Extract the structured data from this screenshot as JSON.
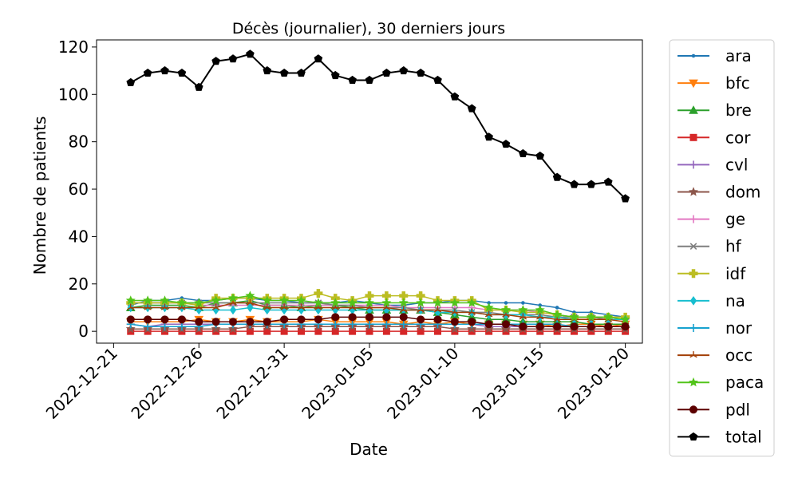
{
  "chart_data": {
    "type": "line",
    "title": "Décès (journalier), 30 derniers jours",
    "xlabel": "Date",
    "ylabel": "Nombre de patients",
    "x_dates": [
      "2022-12-22",
      "2022-12-23",
      "2022-12-24",
      "2022-12-25",
      "2022-12-26",
      "2022-12-27",
      "2022-12-28",
      "2022-12-29",
      "2022-12-30",
      "2022-12-31",
      "2023-01-01",
      "2023-01-02",
      "2023-01-03",
      "2023-01-04",
      "2023-01-05",
      "2023-01-06",
      "2023-01-07",
      "2023-01-08",
      "2023-01-09",
      "2023-01-10",
      "2023-01-11",
      "2023-01-12",
      "2023-01-13",
      "2023-01-14",
      "2023-01-15",
      "2023-01-16",
      "2023-01-17",
      "2023-01-18",
      "2023-01-19",
      "2023-01-20"
    ],
    "xlim": [
      "2022-12-20",
      "2023-01-21"
    ],
    "x_ticks": [
      "2022-12-21",
      "2022-12-26",
      "2022-12-31",
      "2023-01-05",
      "2023-01-10",
      "2023-01-15",
      "2023-01-20"
    ],
    "ylim": [
      -5,
      123
    ],
    "y_ticks": [
      0,
      20,
      40,
      60,
      80,
      100,
      120
    ],
    "grid": false,
    "legend_position": "outside-right",
    "series": [
      {
        "name": "ara",
        "color": "#1f77b4",
        "marker": "point",
        "values": [
          11,
          13,
          13,
          14,
          13,
          13,
          14,
          14,
          13,
          13,
          12,
          12,
          12,
          13,
          12,
          11,
          11,
          12,
          12,
          13,
          13,
          12,
          12,
          12,
          11,
          10,
          8,
          8,
          7,
          6
        ]
      },
      {
        "name": "bfc",
        "color": "#ff7f0e",
        "marker": "triangle-down",
        "values": [
          4,
          4,
          4,
          4,
          5,
          4,
          4,
          5,
          4,
          4,
          4,
          5,
          4,
          4,
          4,
          4,
          3,
          4,
          3,
          4,
          3,
          3,
          3,
          3,
          3,
          2,
          3,
          3,
          2,
          3
        ]
      },
      {
        "name": "bre",
        "color": "#2ca02c",
        "marker": "triangle-up",
        "values": [
          10,
          11,
          11,
          11,
          10,
          12,
          12,
          13,
          11,
          11,
          10,
          11,
          11,
          10,
          9,
          9,
          9,
          9,
          8,
          7,
          6,
          5,
          5,
          4,
          4,
          4,
          4,
          3,
          3,
          3
        ]
      },
      {
        "name": "cor",
        "color": "#d62728",
        "marker": "square",
        "values": [
          0,
          0,
          0,
          0,
          0,
          0,
          0,
          0,
          0,
          0,
          0,
          0,
          0,
          0,
          0,
          0,
          0,
          0,
          0,
          0,
          0,
          0,
          0,
          0,
          0,
          0,
          0,
          0,
          0,
          0
        ]
      },
      {
        "name": "cvl",
        "color": "#9467bd",
        "marker": "plus",
        "values": [
          3,
          2,
          3,
          3,
          3,
          3,
          3,
          3,
          3,
          3,
          3,
          3,
          3,
          3,
          3,
          3,
          3,
          3,
          3,
          3,
          3,
          2,
          2,
          2,
          2,
          2,
          2,
          2,
          2,
          2
        ]
      },
      {
        "name": "dom",
        "color": "#8c564b",
        "marker": "star",
        "values": [
          1,
          1,
          1,
          1,
          1,
          1,
          1,
          2,
          2,
          2,
          2,
          2,
          2,
          2,
          2,
          2,
          2,
          2,
          2,
          1,
          1,
          1,
          1,
          1,
          1,
          1,
          1,
          1,
          1,
          1
        ]
      },
      {
        "name": "ge",
        "color": "#e377c2",
        "marker": "plus",
        "values": [
          12,
          12,
          12,
          12,
          11,
          11,
          11,
          11,
          11,
          11,
          11,
          11,
          11,
          11,
          11,
          11,
          10,
          10,
          10,
          10,
          10,
          9,
          9,
          9,
          8,
          7,
          6,
          6,
          6,
          5
        ]
      },
      {
        "name": "hf",
        "color": "#7f7f7f",
        "marker": "x",
        "values": [
          12,
          12,
          12,
          12,
          12,
          12,
          12,
          12,
          12,
          12,
          12,
          12,
          11,
          11,
          10,
          10,
          10,
          9,
          9,
          9,
          8,
          8,
          7,
          7,
          7,
          6,
          6,
          6,
          5,
          5
        ]
      },
      {
        "name": "idf",
        "color": "#bcbd22",
        "marker": "cross",
        "values": [
          12,
          12,
          12,
          12,
          11,
          14,
          14,
          14,
          14,
          14,
          14,
          16,
          14,
          13,
          15,
          15,
          15,
          15,
          13,
          13,
          13,
          9,
          9,
          8,
          8,
          7,
          6,
          6,
          6,
          6
        ]
      },
      {
        "name": "na",
        "color": "#17becf",
        "marker": "diamond",
        "values": [
          10,
          10,
          10,
          10,
          9,
          9,
          9,
          10,
          9,
          9,
          9,
          9,
          9,
          9,
          9,
          9,
          9,
          9,
          8,
          8,
          8,
          7,
          7,
          7,
          6,
          6,
          5,
          5,
          5,
          5
        ]
      },
      {
        "name": "nor",
        "color": "#17a2cf",
        "marker": "plus",
        "values": [
          3,
          2,
          2,
          2,
          2,
          3,
          3,
          3,
          3,
          3,
          3,
          3,
          3,
          3,
          3,
          3,
          3,
          3,
          3,
          3,
          3,
          3,
          3,
          3,
          3,
          3,
          2,
          2,
          2,
          2
        ]
      },
      {
        "name": "occ",
        "color": "#a33f06",
        "marker": "tri",
        "values": [
          10,
          10,
          10,
          10,
          10,
          10,
          12,
          12,
          10,
          10,
          10,
          10,
          10,
          10,
          10,
          10,
          9,
          9,
          9,
          8,
          8,
          7,
          7,
          6,
          6,
          5,
          5,
          5,
          5,
          4
        ]
      },
      {
        "name": "paca",
        "color": "#52c41a",
        "marker": "star",
        "values": [
          13,
          13,
          13,
          12,
          12,
          13,
          14,
          15,
          13,
          13,
          13,
          12,
          12,
          12,
          12,
          12,
          12,
          12,
          12,
          12,
          12,
          10,
          9,
          9,
          9,
          7,
          6,
          6,
          6,
          5
        ]
      },
      {
        "name": "pdl",
        "color": "#5c0000",
        "marker": "circle",
        "values": [
          5,
          5,
          5,
          5,
          4,
          4,
          4,
          4,
          4,
          5,
          5,
          5,
          6,
          6,
          6,
          6,
          6,
          5,
          5,
          4,
          4,
          3,
          3,
          2,
          2,
          2,
          2,
          2,
          2,
          2
        ]
      },
      {
        "name": "total",
        "color": "#000000",
        "marker": "pentagon",
        "values": [
          105,
          109,
          110,
          109,
          103,
          114,
          115,
          117,
          110,
          109,
          109,
          115,
          108,
          106,
          106,
          109,
          110,
          109,
          106,
          99,
          94,
          82,
          79,
          75,
          74,
          65,
          62,
          62,
          63,
          56
        ]
      }
    ]
  }
}
